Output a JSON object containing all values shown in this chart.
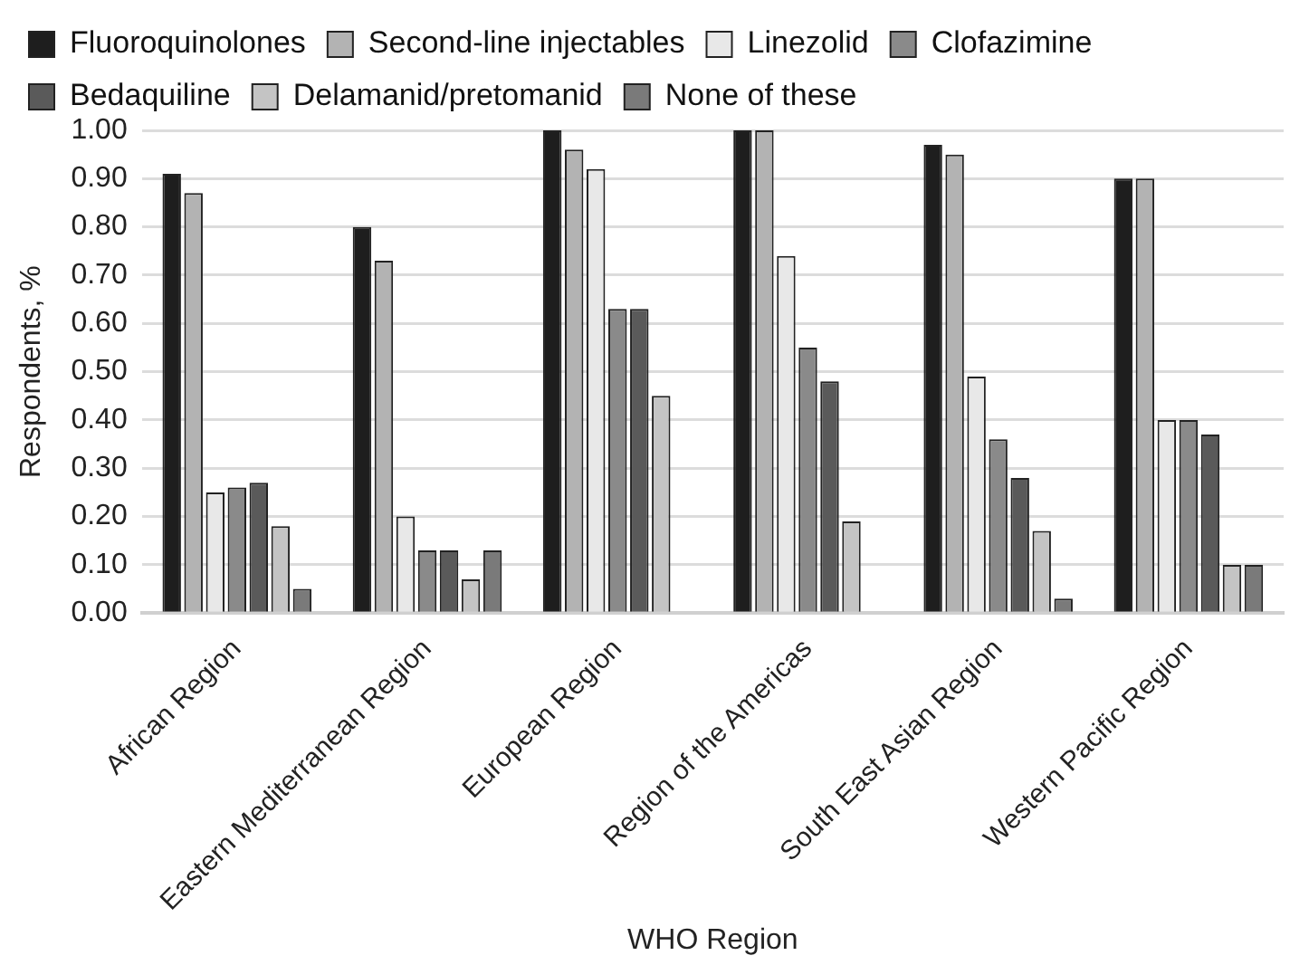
{
  "chart_data": {
    "type": "bar",
    "xlabel": "WHO Region",
    "ylabel": "Respondents, %",
    "categories": [
      "African Region",
      "Eastern Mediterranean Region",
      "European Region",
      "Region of the Americas",
      "South East Asian Region",
      "Western Pacific Region"
    ],
    "series": [
      {
        "name": "Fluoroquinolones",
        "color": "#1e1e1e",
        "values": [
          0.91,
          0.8,
          1.0,
          1.0,
          0.97,
          0.9
        ]
      },
      {
        "name": "Second-line injectables",
        "color": "#b3b3b3",
        "values": [
          0.87,
          0.73,
          0.96,
          1.0,
          0.95,
          0.9
        ]
      },
      {
        "name": "Linezolid",
        "color": "#e8e8e8",
        "values": [
          0.25,
          0.2,
          0.92,
          0.74,
          0.49,
          0.4
        ]
      },
      {
        "name": "Clofazimine",
        "color": "#8a8a8a",
        "values": [
          0.26,
          0.13,
          0.63,
          0.55,
          0.36,
          0.4
        ]
      },
      {
        "name": "Bedaquiline",
        "color": "#5a5a5a",
        "values": [
          0.27,
          0.13,
          0.63,
          0.48,
          0.28,
          0.37
        ]
      },
      {
        "name": "Delamanid/pretomanid",
        "color": "#c4c4c4",
        "values": [
          0.18,
          0.07,
          0.45,
          0.19,
          0.17,
          0.1
        ]
      },
      {
        "name": "None of these",
        "color": "#7a7a7a",
        "values": [
          0.05,
          0.13,
          0,
          0,
          0.03,
          0.1
        ]
      }
    ],
    "ylim": [
      0,
      1
    ],
    "yticks": [
      {
        "value": 0,
        "label": "0.00"
      },
      {
        "value": 0.1,
        "label": "0.10"
      },
      {
        "value": 0.2,
        "label": "0.20"
      },
      {
        "value": 0.3,
        "label": "0.30"
      },
      {
        "value": 0.4,
        "label": "0.40"
      },
      {
        "value": 0.5,
        "label": "0.50"
      },
      {
        "value": 0.6,
        "label": "0.60"
      },
      {
        "value": 0.7,
        "label": "0.70"
      },
      {
        "value": 0.8,
        "label": "0.80"
      },
      {
        "value": 0.9,
        "label": "0.90"
      },
      {
        "value": 1,
        "label": "1.00"
      }
    ],
    "grid": "y",
    "legend": "top"
  }
}
